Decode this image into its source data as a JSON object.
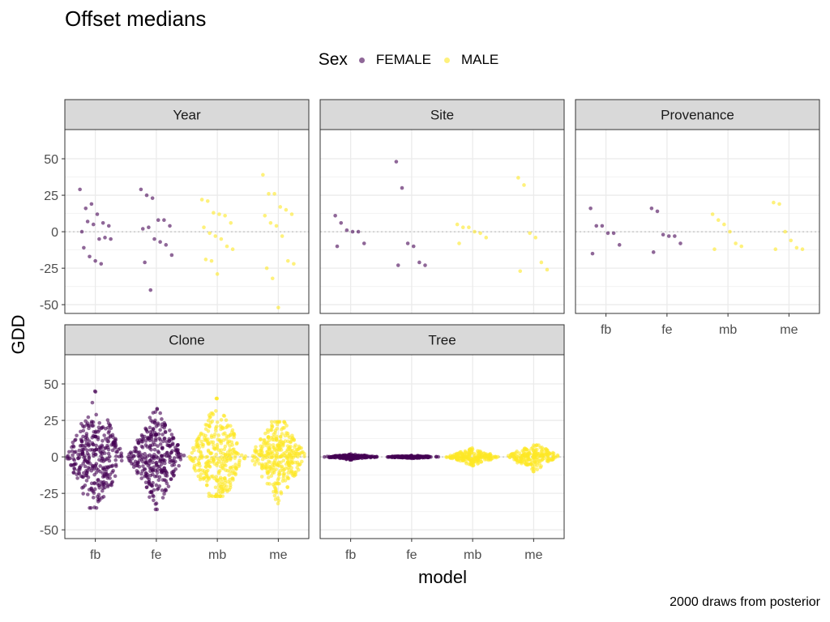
{
  "title": "Offset medians",
  "caption": "2000 draws from posterior",
  "legend": {
    "title": "Sex",
    "items": [
      {
        "label": "FEMALE",
        "color": "#440154"
      },
      {
        "label": "MALE",
        "color": "#FDE725"
      }
    ]
  },
  "chart_data": {
    "type": "scatter",
    "xlabel": "model",
    "ylabel": "GDD",
    "categories": [
      "fb",
      "fe",
      "mb",
      "me"
    ],
    "ylim": [
      -56,
      70
    ],
    "yticks": [
      -50,
      -25,
      0,
      25,
      50
    ],
    "ytick_labels": [
      "-50",
      "-25",
      "0",
      "25",
      "50"
    ],
    "grid": true,
    "reference_line": 0,
    "legend_position": "top",
    "category_sex": {
      "fb": "FEMALE",
      "fe": "FEMALE",
      "mb": "MALE",
      "me": "MALE"
    },
    "panels": [
      {
        "name": "Year",
        "points": {
          "fb": [
            29,
            16,
            19,
            12,
            6,
            4,
            0,
            7,
            5,
            -5,
            -4,
            -5,
            -11,
            -17,
            -20,
            -22
          ],
          "fe": [
            29,
            25,
            23,
            8,
            8,
            4,
            2,
            3,
            -5,
            -7,
            -9,
            -16,
            -21,
            -40
          ],
          "mb": [
            22,
            21,
            13,
            12,
            11,
            6,
            3,
            -1,
            -3,
            -5,
            -10,
            -12,
            -19,
            -20,
            -29
          ],
          "me": [
            39,
            26,
            26,
            17,
            15,
            12,
            11,
            6,
            4,
            -3,
            -20,
            -22,
            -25,
            -32,
            -52
          ]
        }
      },
      {
        "name": "Site",
        "points": {
          "fb": [
            11,
            6,
            1,
            0,
            0,
            -8,
            -10
          ],
          "fe": [
            48,
            30,
            -8,
            -10,
            -21,
            -23,
            -23
          ],
          "mb": [
            5,
            3,
            3,
            0,
            -1,
            -4,
            -8
          ],
          "me": [
            37,
            32,
            -1,
            -4,
            -21,
            -26,
            -27
          ]
        }
      },
      {
        "name": "Provenance",
        "points": {
          "fb": [
            16,
            4,
            4,
            -1,
            -1,
            -9,
            -15
          ],
          "fe": [
            16,
            14,
            -2,
            -3,
            -3,
            -8,
            -14
          ],
          "mb": [
            12,
            8,
            5,
            0,
            -8,
            -10,
            -12
          ],
          "me": [
            20,
            19,
            0,
            -6,
            -11,
            -12,
            -12
          ]
        }
      },
      {
        "name": "Clone",
        "distribution": {
          "fb": {
            "min": -35,
            "max": 45,
            "n": 320
          },
          "fe": {
            "min": -36,
            "max": 33,
            "n": 320
          },
          "mb": {
            "min": -27,
            "max": 40,
            "n": 320
          },
          "me": {
            "min": -32,
            "max": 24,
            "n": 320
          }
        }
      },
      {
        "name": "Tree",
        "distribution": {
          "fb": {
            "min": -2,
            "max": 2,
            "n": 200
          },
          "fe": {
            "min": -1,
            "max": 1,
            "n": 200
          },
          "mb": {
            "min": -6,
            "max": 6,
            "n": 200
          },
          "me": {
            "min": -10,
            "max": 8,
            "n": 200
          }
        }
      }
    ]
  }
}
